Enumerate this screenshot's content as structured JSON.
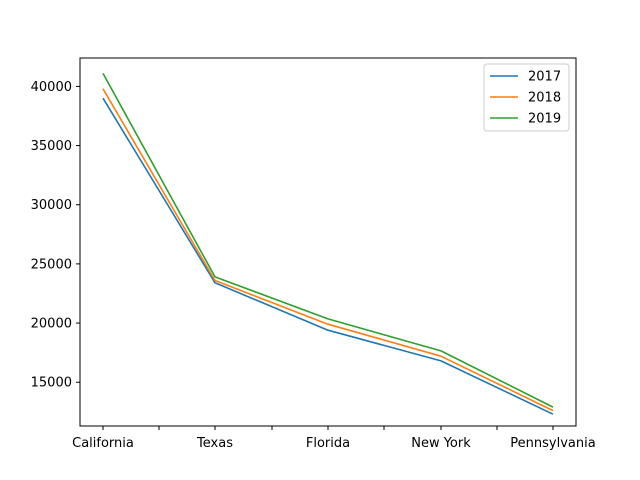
{
  "chart_data": {
    "type": "line",
    "title": "",
    "xlabel": "",
    "ylabel": "",
    "categories": [
      "California",
      "Texas",
      "Florida",
      "New York",
      "Pennsylvania"
    ],
    "series": [
      {
        "name": "2017",
        "color": "#1f77b4",
        "values": [
          39000,
          23400,
          19400,
          16800,
          12300
        ]
      },
      {
        "name": "2018",
        "color": "#ff7f0e",
        "values": [
          39800,
          23600,
          19900,
          17200,
          12600
        ]
      },
      {
        "name": "2019",
        "color": "#2ca02c",
        "values": [
          41100,
          23900,
          20350,
          17650,
          12900
        ]
      }
    ],
    "y_ticks": [
      15000,
      20000,
      25000,
      30000,
      35000,
      40000
    ],
    "ylim": [
      11300,
      42400
    ],
    "grid": false,
    "legend_position": "top-right"
  }
}
